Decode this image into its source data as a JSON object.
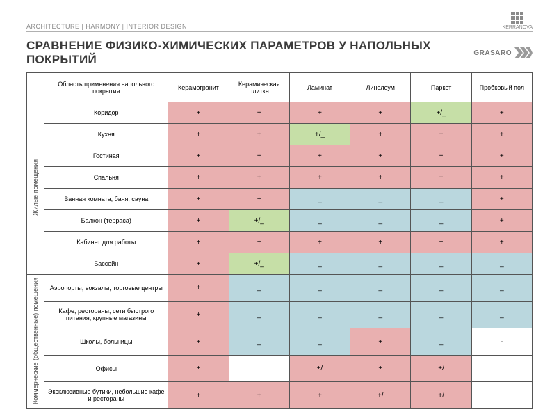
{
  "header": {
    "tagline": "ARCHITECTURE | HARMONY | INTERIOR DESIGN",
    "brand": "KERRANOVA"
  },
  "title": "СРАВНЕНИЕ ФИЗИКО-ХИМИЧЕСКИХ ПАРАМЕТРОВ У НАПОЛЬНЫХ ПОКРЫТИЙ",
  "company": "GRASARO",
  "colors": {
    "pink": "#e9b0b0",
    "green": "#c6dfa7",
    "blue": "#bad7de",
    "white": "#ffffff",
    "border": "#555555",
    "text": "#3a3a3a",
    "muted": "#8a8a8a"
  },
  "columns_header": "Область применения напольного покрытия",
  "floor_types": [
    "Керамогранит",
    "Керамическая плитка",
    "Ламинат",
    "Линолеум",
    "Паркет",
    "Пробковый пол"
  ],
  "groups": [
    {
      "label": "Жилые помещения",
      "rows": [
        {
          "area": "Коридор",
          "cells": [
            [
              "+",
              "pink"
            ],
            [
              "+",
              "pink"
            ],
            [
              "+",
              "pink"
            ],
            [
              "+",
              "pink"
            ],
            [
              "+/_",
              "green"
            ],
            [
              "+",
              "pink"
            ]
          ]
        },
        {
          "area": "Кухня",
          "cells": [
            [
              "+",
              "pink"
            ],
            [
              "+",
              "pink"
            ],
            [
              "+/_",
              "green"
            ],
            [
              "+",
              "pink"
            ],
            [
              "+",
              "pink"
            ],
            [
              "+",
              "pink"
            ]
          ]
        },
        {
          "area": "Гостиная",
          "cells": [
            [
              "+",
              "pink"
            ],
            [
              "+",
              "pink"
            ],
            [
              "+",
              "pink"
            ],
            [
              "+",
              "pink"
            ],
            [
              "+",
              "pink"
            ],
            [
              "+",
              "pink"
            ]
          ]
        },
        {
          "area": "Спальня",
          "cells": [
            [
              "+",
              "pink"
            ],
            [
              "+",
              "pink"
            ],
            [
              "+",
              "pink"
            ],
            [
              "+",
              "pink"
            ],
            [
              "+",
              "pink"
            ],
            [
              "+",
              "pink"
            ]
          ]
        },
        {
          "area": "Ванная комната, баня, сауна",
          "cells": [
            [
              "+",
              "pink"
            ],
            [
              "+",
              "pink"
            ],
            [
              "_",
              "blue"
            ],
            [
              "_",
              "blue"
            ],
            [
              "_",
              "blue"
            ],
            [
              "+",
              "pink"
            ]
          ]
        },
        {
          "area": "Балкон (терраса)",
          "cells": [
            [
              "+",
              "pink"
            ],
            [
              "+/_",
              "green"
            ],
            [
              "_",
              "blue"
            ],
            [
              "_",
              "blue"
            ],
            [
              "_",
              "blue"
            ],
            [
              "+",
              "pink"
            ]
          ]
        },
        {
          "area": "Кабинет для работы",
          "cells": [
            [
              "+",
              "pink"
            ],
            [
              "+",
              "pink"
            ],
            [
              "+",
              "pink"
            ],
            [
              "+",
              "pink"
            ],
            [
              "+",
              "pink"
            ],
            [
              "+",
              "pink"
            ]
          ]
        },
        {
          "area": "Бассейн",
          "cells": [
            [
              "+",
              "pink"
            ],
            [
              "+/_",
              "green"
            ],
            [
              "_",
              "blue"
            ],
            [
              "_",
              "blue"
            ],
            [
              "_",
              "blue"
            ],
            [
              "_",
              "blue"
            ]
          ]
        }
      ]
    },
    {
      "label": "Коммерческие (общественные) помещения",
      "rows": [
        {
          "area": "Аэропорты, вокзалы, торговые центры",
          "cells": [
            [
              "+",
              "pink"
            ],
            [
              "_",
              "blue"
            ],
            [
              "_",
              "blue"
            ],
            [
              "_",
              "blue"
            ],
            [
              "_",
              "blue"
            ],
            [
              "_",
              "blue"
            ]
          ]
        },
        {
          "area": "Кафе, рестораны, сети быстрого питания, крупные магазины",
          "cells": [
            [
              "+",
              "pink"
            ],
            [
              "_",
              "blue"
            ],
            [
              "_",
              "blue"
            ],
            [
              "_",
              "blue"
            ],
            [
              "_",
              "blue"
            ],
            [
              "_",
              "blue"
            ]
          ]
        },
        {
          "area": "Школы, больницы",
          "cells": [
            [
              "+",
              "pink"
            ],
            [
              "_",
              "blue"
            ],
            [
              "_",
              "blue"
            ],
            [
              "+",
              "pink"
            ],
            [
              "_",
              "blue"
            ],
            [
              "-",
              "white"
            ]
          ]
        },
        {
          "area": "Офисы",
          "cells": [
            [
              "+",
              "pink"
            ],
            [
              "",
              "white"
            ],
            [
              "+/",
              "pink"
            ],
            [
              "+",
              "pink"
            ],
            [
              "+/",
              "pink"
            ],
            [
              "",
              "white"
            ]
          ]
        },
        {
          "area": "Эксклюзивные бутики, небольшие кафе и рестораны",
          "cells": [
            [
              "+",
              "pink"
            ],
            [
              "+",
              "pink"
            ],
            [
              "+",
              "pink"
            ],
            [
              "+/",
              "pink"
            ],
            [
              "+/",
              "pink"
            ],
            [
              "",
              "white"
            ]
          ]
        }
      ]
    }
  ]
}
